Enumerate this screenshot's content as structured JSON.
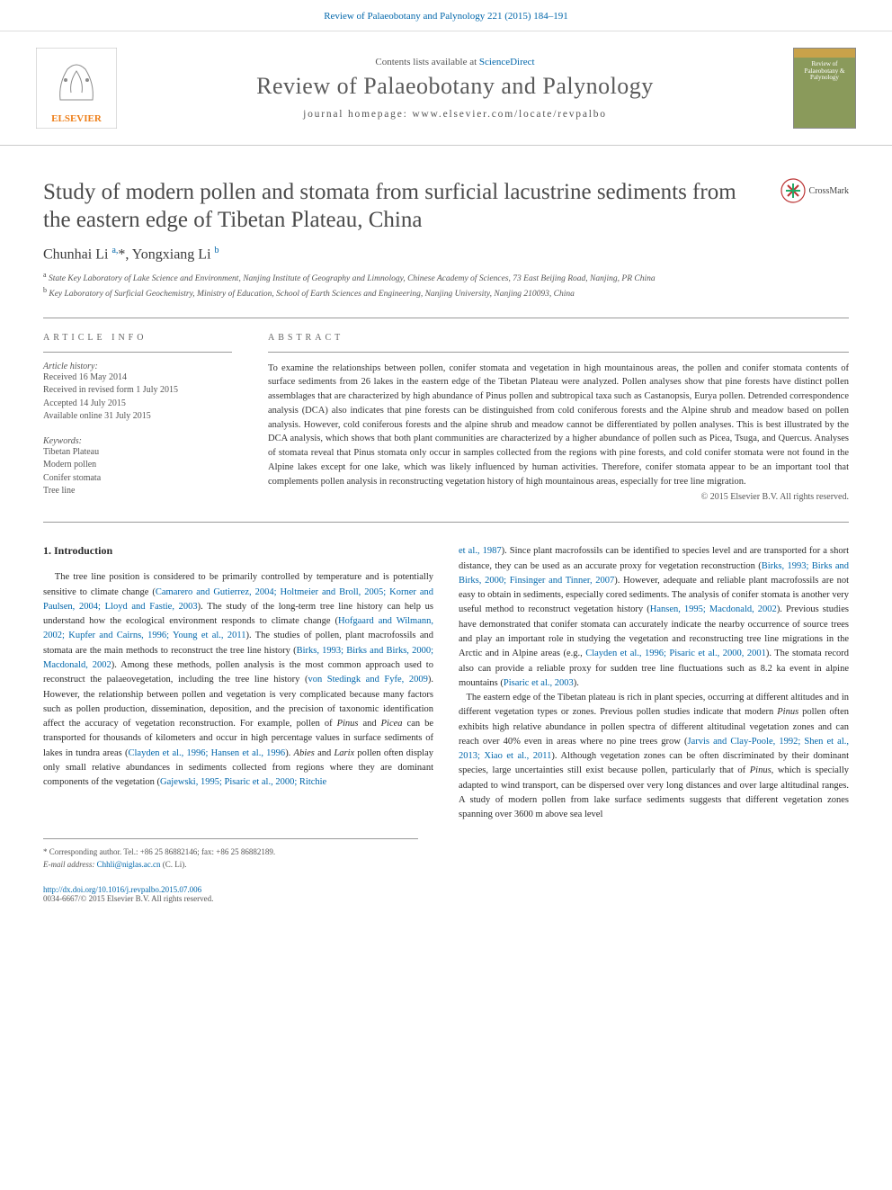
{
  "header_link": "Review of Palaeobotany and Palynology 221 (2015) 184–191",
  "scidirect_prefix": "Contents lists available at",
  "scidirect_link": "ScienceDirect",
  "journal_title": "Review of Palaeobotany and Palynology",
  "journal_home_prefix": "journal homepage:",
  "journal_home_url": "www.elsevier.com/locate/revpalbo",
  "cover_text": "Review of\nPalaeobotany\n& Palynology",
  "article_title": "Study of modern pollen and stomata from surficial lacustrine sediments from the eastern edge of Tibetan Plateau, China",
  "crossmark_text": "CrossMark",
  "authors_html": "Chunhai Li <sup>a,</sup>*, Yongxiang Li <sup>b</sup>",
  "affiliations": [
    {
      "sup": "a",
      "text": "State Key Laboratory of Lake Science and Environment, Nanjing Institute of Geography and Limnology, Chinese Academy of Sciences, 73 East Beijing Road, Nanjing, PR China"
    },
    {
      "sup": "b",
      "text": "Key Laboratory of Surficial Geochemistry, Ministry of Education, School of Earth Sciences and Engineering, Nanjing University, Nanjing 210093, China"
    }
  ],
  "article_info_heading": "ARTICLE INFO",
  "history_label": "Article history:",
  "history": [
    "Received 16 May 2014",
    "Received in revised form 1 July 2015",
    "Accepted 14 July 2015",
    "Available online 31 July 2015"
  ],
  "keywords_label": "Keywords:",
  "keywords": [
    "Tibetan Plateau",
    "Modern pollen",
    "Conifer stomata",
    "Tree line"
  ],
  "abstract_heading": "ABSTRACT",
  "abstract_text": "To examine the relationships between pollen, conifer stomata and vegetation in high mountainous areas, the pollen and conifer stomata contents of surface sediments from 26 lakes in the eastern edge of the Tibetan Plateau were analyzed. Pollen analyses show that pine forests have distinct pollen assemblages that are characterized by high abundance of Pinus pollen and subtropical taxa such as Castanopsis, Eurya pollen. Detrended correspondence analysis (DCA) also indicates that pine forests can be distinguished from cold coniferous forests and the Alpine shrub and meadow based on pollen analysis. However, cold coniferous forests and the alpine shrub and meadow cannot be differentiated by pollen analyses. This is best illustrated by the DCA analysis, which shows that both plant communities are characterized by a higher abundance of pollen such as Picea, Tsuga, and Quercus. Analyses of stomata reveal that Pinus stomata only occur in samples collected from the regions with pine forests, and cold conifer stomata were not found in the Alpine lakes except for one lake, which was likely influenced by human activities. Therefore, conifer stomata appear to be an important tool that complements pollen analysis in reconstructing vegetation history of high mountainous areas, especially for tree line migration.",
  "copyright": "© 2015 Elsevier B.V. All rights reserved.",
  "section_heading": "1. Introduction",
  "col1_html": "The tree line position is considered to be primarily controlled by temperature and is potentially sensitive to climate change (<span class='ref'>Camarero and Gutierrez, 2004; Holtmeier and Broll, 2005; Korner and Paulsen, 2004; Lloyd and Fastie, 2003</span>). The study of the long-term tree line history can help us understand how the ecological environment responds to climate change (<span class='ref'>Hofgaard and Wilmann, 2002; Kupfer and Cairns, 1996; Young et al., 2011</span>). The studies of pollen, plant macrofossils and stomata are the main methods to reconstruct the tree line history (<span class='ref'>Birks, 1993; Birks and Birks, 2000; Macdonald, 2002</span>). Among these methods, pollen analysis is the most common approach used to reconstruct the palaeovegetation, including the tree line history (<span class='ref'>von Stedingk and Fyfe, 2009</span>). However, the relationship between pollen and vegetation is very complicated because many factors such as pollen production, dissemination, deposition, and the precision of taxonomic identification affect the accuracy of vegetation reconstruction. For example, pollen of <em>Pinus</em> and <em>Picea</em> can be transported for thousands of kilometers and occur in high percentage values in surface sediments of lakes in tundra areas (<span class='ref'>Clayden et al., 1996; Hansen et al., 1996</span>). <em>Abies</em> and <em>Larix</em> pollen often display only small relative abundances in sediments collected from regions where they are dominant components of the vegetation (<span class='ref'>Gajewski, 1995; Pisaric et al., 2000; Ritchie</span>",
  "col2_html": "<span class='ref'>et al., 1987</span>). Since plant macrofossils can be identified to species level and are transported for a short distance, they can be used as an accurate proxy for vegetation reconstruction (<span class='ref'>Birks, 1993; Birks and Birks, 2000; Finsinger and Tinner, 2007</span>). However, adequate and reliable plant macrofossils are not easy to obtain in sediments, especially cored sediments. The analysis of conifer stomata is another very useful method to reconstruct vegetation history (<span class='ref'>Hansen, 1995; Macdonald, 2002</span>). Previous studies have demonstrated that conifer stomata can accurately indicate the nearby occurrence of source trees and play an important role in studying the vegetation and reconstructing tree line migrations in the Arctic and in Alpine areas (e.g., <span class='ref'>Clayden et al., 1996; Pisaric et al., 2000, 2001</span>). The stomata record also can provide a reliable proxy for sudden tree line fluctuations such as 8.2 ka event in alpine mountains (<span class='ref'>Pisaric et al., 2003</span>).<br>&nbsp;&nbsp;&nbsp;The eastern edge of the Tibetan plateau is rich in plant species, occurring at different altitudes and in different vegetation types or zones. Previous pollen studies indicate that modern <em>Pinus</em> pollen often exhibits high relative abundance in pollen spectra of different altitudinal vegetation zones and can reach over 40% even in areas where no pine trees grow (<span class='ref'>Jarvis and Clay-Poole, 1992; Shen et al., 2013; Xiao et al., 2011</span>). Although vegetation zones can be often discriminated by their dominant species, large uncertainties still exist because pollen, particularly that of <em>Pinus</em>, which is specially adapted to wind transport, can be dispersed over very long distances and over large altitudinal ranges. A study of modern pollen from lake surface sediments suggests that different vegetation zones spanning over 3600 m above sea level",
  "footnote_corr": "* Corresponding author. Tel.: +86 25 86882146; fax: +86 25 86882189.",
  "footnote_email_label": "E-mail address:",
  "footnote_email": "Chhli@niglas.ac.cn",
  "footnote_email_name": "(C. Li).",
  "doi_url": "http://dx.doi.org/10.1016/j.revpalbo.2015.07.006",
  "issn_line": "0034-6667/© 2015 Elsevier B.V. All rights reserved.",
  "colors": {
    "link": "#0066aa",
    "body": "#2a2a2a",
    "muted": "#555555",
    "rule": "#999999",
    "elsevier_orange": "#ee7f1a",
    "elsevier_grey": "#8b8b8b",
    "cover_bg": "#8a9a5b"
  }
}
